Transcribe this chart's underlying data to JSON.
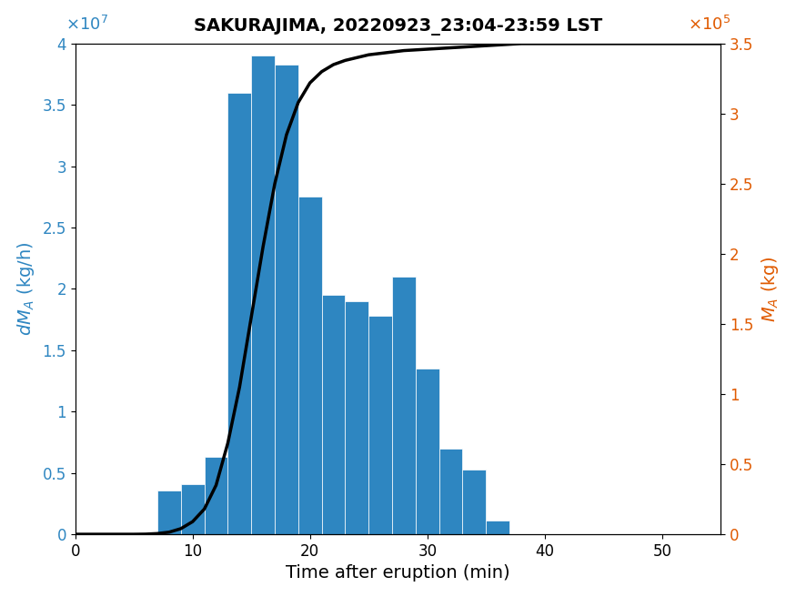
{
  "title": "SAKURAJIMA, 20220923_23:04-23:59 LST",
  "xlabel": "Time after eruption (min)",
  "ylabel_left": "dM_A (kg/h)",
  "ylabel_right": "M_A (kg)",
  "bar_color": "#2e86c1",
  "bar_width": 2.0,
  "bar_centers": [
    8,
    10,
    12,
    14,
    16,
    18,
    20,
    22,
    24,
    26,
    28,
    30,
    32,
    34,
    36,
    38
  ],
  "bar_heights": [
    3600000.0,
    4100000.0,
    6300000.0,
    36000000.0,
    39000000.0,
    38300000.0,
    27500000.0,
    19500000.0,
    19000000.0,
    17800000.0,
    21000000.0,
    13500000.0,
    7000000.0,
    5300000.0,
    1100000.0,
    0.0
  ],
  "xlim": [
    0,
    55
  ],
  "ylim_left": [
    0,
    40000000.0
  ],
  "ylim_right": [
    0,
    350000.0
  ],
  "xticks": [
    0,
    10,
    20,
    30,
    40,
    50
  ],
  "yticks_left": [
    0,
    5000000,
    10000000,
    15000000,
    20000000,
    25000000,
    30000000,
    35000000,
    40000000
  ],
  "yticks_right": [
    0,
    50000,
    100000,
    150000,
    200000,
    250000,
    300000,
    350000
  ],
  "cumulative_x": [
    0,
    4,
    5,
    6,
    7,
    8,
    9,
    10,
    11,
    12,
    13,
    14,
    15,
    16,
    17,
    18,
    19,
    20,
    21,
    22,
    23,
    24,
    25,
    26,
    27,
    28,
    30,
    32,
    34,
    36,
    38,
    40,
    45,
    50,
    55
  ],
  "cumulative_y": [
    0,
    0,
    0,
    100.0,
    500.0,
    1500.0,
    4000.0,
    9000.0,
    18000.0,
    35000.0,
    65000.0,
    105000.0,
    155000.0,
    205000.0,
    250000.0,
    285000.0,
    308000.0,
    322000.0,
    330000.0,
    335000.0,
    338000.0,
    340000.0,
    342000.0,
    343000.0,
    344000.0,
    345000.0,
    346000.0,
    347000.0,
    348000.0,
    349000.0,
    350000.0,
    350000.0,
    350000.0,
    350000.0,
    350000.0
  ]
}
